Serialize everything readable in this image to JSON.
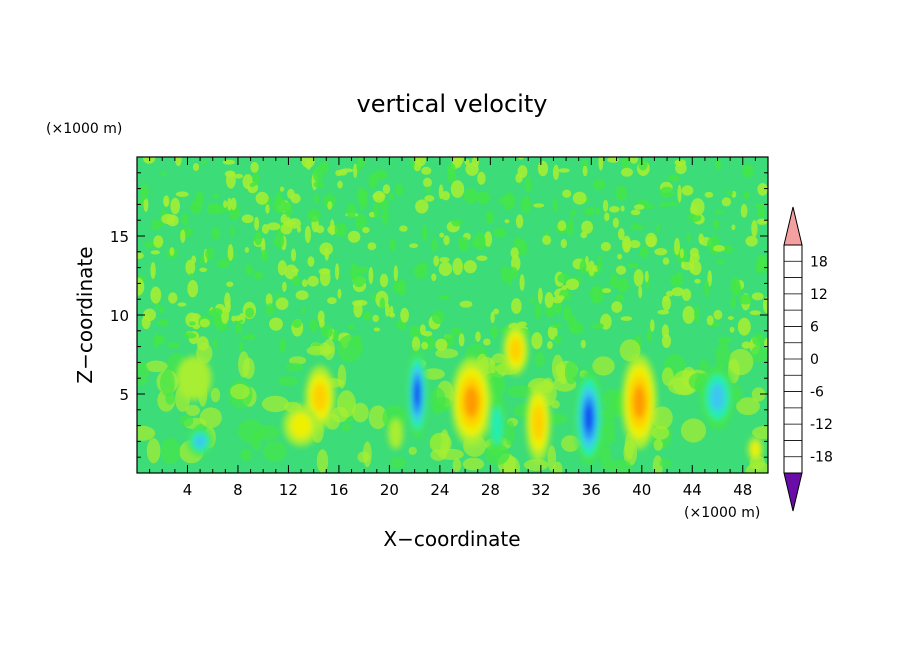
{
  "chart_data": {
    "type": "heatmap",
    "title": "vertical velocity",
    "xlabel": "X−coordinate",
    "ylabel": "Z−coordinate",
    "x_unit": "(×1000 m)",
    "y_unit": "(×1000 m)",
    "xlim": [
      0,
      50
    ],
    "ylim": [
      0,
      20
    ],
    "x_ticks": [
      4,
      8,
      12,
      16,
      20,
      24,
      28,
      32,
      36,
      40,
      44,
      48
    ],
    "y_ticks": [
      5,
      10,
      15
    ],
    "grid": false,
    "colorbar": {
      "levels": [
        -21,
        -18,
        -15,
        -12,
        -9,
        -6,
        -3,
        0,
        3,
        6,
        9,
        12,
        15,
        18,
        21
      ],
      "labels": [
        18,
        12,
        6,
        0,
        -6,
        -12,
        -18
      ],
      "colors": [
        "#6a0da8",
        "#2a0fa0",
        "#1020d0",
        "#0a4af0",
        "#1f8cf5",
        "#3cc6f0",
        "#22eeb4",
        "#44e648",
        "#a8ee30",
        "#eef000",
        "#ffcf00",
        "#ff9a00",
        "#ff6a00",
        "#ff3010",
        "#ea0000",
        "#f4a0a0"
      ]
    },
    "cells": [
      {
        "x": 4.5,
        "z": 6.0,
        "value": 2,
        "sx": 1.4,
        "sz": 1.4
      },
      {
        "x": 5.0,
        "z": 2.0,
        "value": -9,
        "sx": 1.0,
        "sz": 0.9
      },
      {
        "x": 14.5,
        "z": 4.8,
        "value": 8,
        "sx": 1.2,
        "sz": 2.0
      },
      {
        "x": 13.0,
        "z": 3.0,
        "value": 4,
        "sx": 1.4,
        "sz": 1.3
      },
      {
        "x": 22.2,
        "z": 5.0,
        "value": -14,
        "sx": 0.8,
        "sz": 2.8
      },
      {
        "x": 20.5,
        "z": 2.5,
        "value": 3,
        "sx": 0.6,
        "sz": 1.0
      },
      {
        "x": 26.5,
        "z": 4.5,
        "value": 11,
        "sx": 1.6,
        "sz": 2.8
      },
      {
        "x": 30.0,
        "z": 7.8,
        "value": 9,
        "sx": 1.0,
        "sz": 1.6
      },
      {
        "x": 28.5,
        "z": 3.0,
        "value": -6,
        "sx": 0.7,
        "sz": 2.0
      },
      {
        "x": 31.8,
        "z": 3.2,
        "value": 8,
        "sx": 1.0,
        "sz": 2.5
      },
      {
        "x": 35.8,
        "z": 3.5,
        "value": -15,
        "sx": 1.1,
        "sz": 3.0
      },
      {
        "x": 39.8,
        "z": 4.5,
        "value": 12,
        "sx": 1.4,
        "sz": 3.0
      },
      {
        "x": 46.0,
        "z": 4.8,
        "value": -9,
        "sx": 1.3,
        "sz": 2.0
      },
      {
        "x": 49.0,
        "z": 1.5,
        "value": 5,
        "sx": 0.6,
        "sz": 0.8
      }
    ]
  }
}
